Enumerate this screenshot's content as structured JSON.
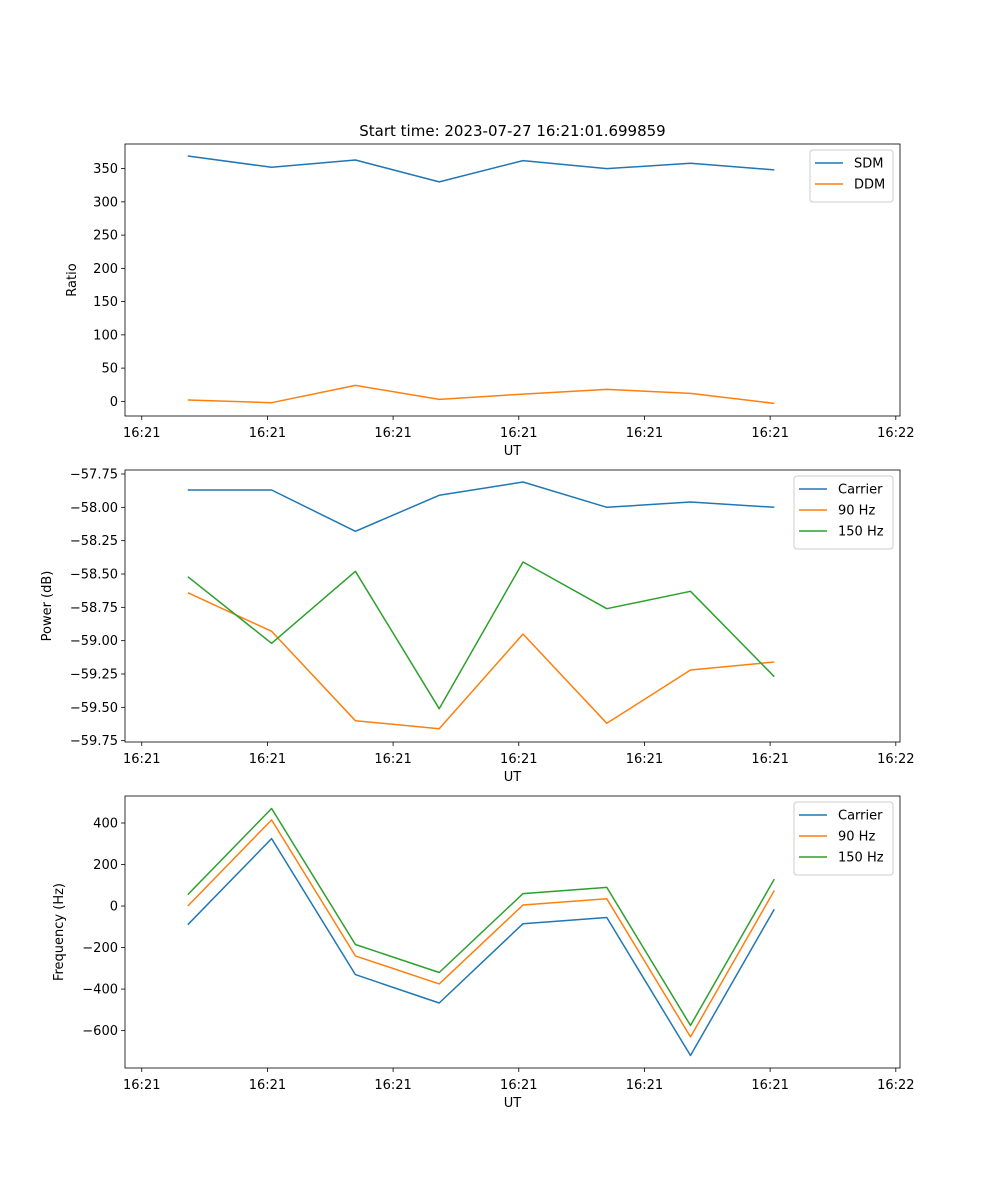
{
  "title": "Start time: 2023-07-27 16:21:01.699859",
  "colors": {
    "blue": "#1f77b4",
    "orange": "#ff7f0e",
    "green": "#2ca02c"
  },
  "chart_data": [
    {
      "type": "line",
      "name": "ratio",
      "title": "Start time: 2023-07-27 16:21:01.699859",
      "xlabel": "UT",
      "ylabel": "Ratio",
      "x": [
        1,
        2,
        3,
        4,
        5,
        6,
        7,
        8
      ],
      "xlim": [
        0.25,
        9.5
      ],
      "xticks": [
        0.45,
        1.95,
        3.45,
        4.95,
        6.45,
        7.95,
        9.45
      ],
      "xticklabels": [
        "16:21",
        "16:21",
        "16:21",
        "16:21",
        "16:21",
        "16:21",
        "16:22"
      ],
      "ylim": [
        -22,
        387
      ],
      "yticks": [
        0,
        50,
        100,
        150,
        200,
        250,
        300,
        350
      ],
      "yticklabels": [
        "0",
        "50",
        "100",
        "150",
        "200",
        "250",
        "300",
        "350"
      ],
      "legend": "top-right",
      "series": [
        {
          "name": "SDM",
          "color": "#1f77b4",
          "values": [
            369,
            352,
            363,
            330,
            362,
            350,
            358,
            348
          ]
        },
        {
          "name": "DDM",
          "color": "#ff7f0e",
          "values": [
            2,
            -2,
            24,
            3,
            11,
            18,
            12,
            -3
          ]
        }
      ]
    },
    {
      "type": "line",
      "name": "power",
      "title": "",
      "xlabel": "UT",
      "ylabel": "Power (dB)",
      "x": [
        1,
        2,
        3,
        4,
        5,
        6,
        7,
        8
      ],
      "xlim": [
        0.25,
        9.5
      ],
      "xticks": [
        0.45,
        1.95,
        3.45,
        4.95,
        6.45,
        7.95,
        9.45
      ],
      "xticklabels": [
        "16:21",
        "16:21",
        "16:21",
        "16:21",
        "16:21",
        "16:21",
        "16:22"
      ],
      "ylim": [
        -59.76,
        -57.72
      ],
      "yticks": [
        -57.75,
        -58.0,
        -58.25,
        -58.5,
        -58.75,
        -59.0,
        -59.25,
        -59.5,
        -59.75
      ],
      "yticklabels": [
        "−57.75",
        "−58.00",
        "−58.25",
        "−58.50",
        "−58.75",
        "−59.00",
        "−59.25",
        "−59.50",
        "−59.75"
      ],
      "legend": "top-right",
      "series": [
        {
          "name": "Carrier",
          "color": "#1f77b4",
          "values": [
            -57.87,
            -57.87,
            -58.18,
            -57.91,
            -57.81,
            -58.0,
            -57.96,
            -58.0
          ]
        },
        {
          "name": "90 Hz",
          "color": "#ff7f0e",
          "values": [
            -58.64,
            -58.93,
            -59.6,
            -59.66,
            -58.95,
            -59.62,
            -59.22,
            -59.16
          ]
        },
        {
          "name": "150 Hz",
          "color": "#2ca02c",
          "values": [
            -58.52,
            -59.02,
            -58.48,
            -59.51,
            -58.41,
            -58.76,
            -58.63,
            -59.27
          ]
        }
      ]
    },
    {
      "type": "line",
      "name": "frequency",
      "title": "",
      "xlabel": "UT",
      "ylabel": "Frequency (Hz)",
      "x": [
        1,
        2,
        3,
        4,
        5,
        6,
        7,
        8
      ],
      "xlim": [
        0.25,
        9.5
      ],
      "xticks": [
        0.45,
        1.95,
        3.45,
        4.95,
        6.45,
        7.95,
        9.45
      ],
      "xticklabels": [
        "16:21",
        "16:21",
        "16:21",
        "16:21",
        "16:21",
        "16:21",
        "16:22"
      ],
      "ylim": [
        -780,
        530
      ],
      "yticks": [
        400,
        200,
        0,
        -200,
        -400,
        -600
      ],
      "yticklabels": [
        "400",
        "200",
        "0",
        "−200",
        "−400",
        "−600"
      ],
      "legend": "top-right",
      "series": [
        {
          "name": "Carrier",
          "color": "#1f77b4",
          "values": [
            -90,
            325,
            -330,
            -467,
            -85,
            -55,
            -720,
            -15
          ]
        },
        {
          "name": "90 Hz",
          "color": "#ff7f0e",
          "values": [
            0,
            415,
            -240,
            -375,
            5,
            35,
            -630,
            75
          ]
        },
        {
          "name": "150 Hz",
          "color": "#2ca02c",
          "values": [
            55,
            470,
            -185,
            -320,
            60,
            90,
            -575,
            130
          ]
        }
      ]
    }
  ]
}
